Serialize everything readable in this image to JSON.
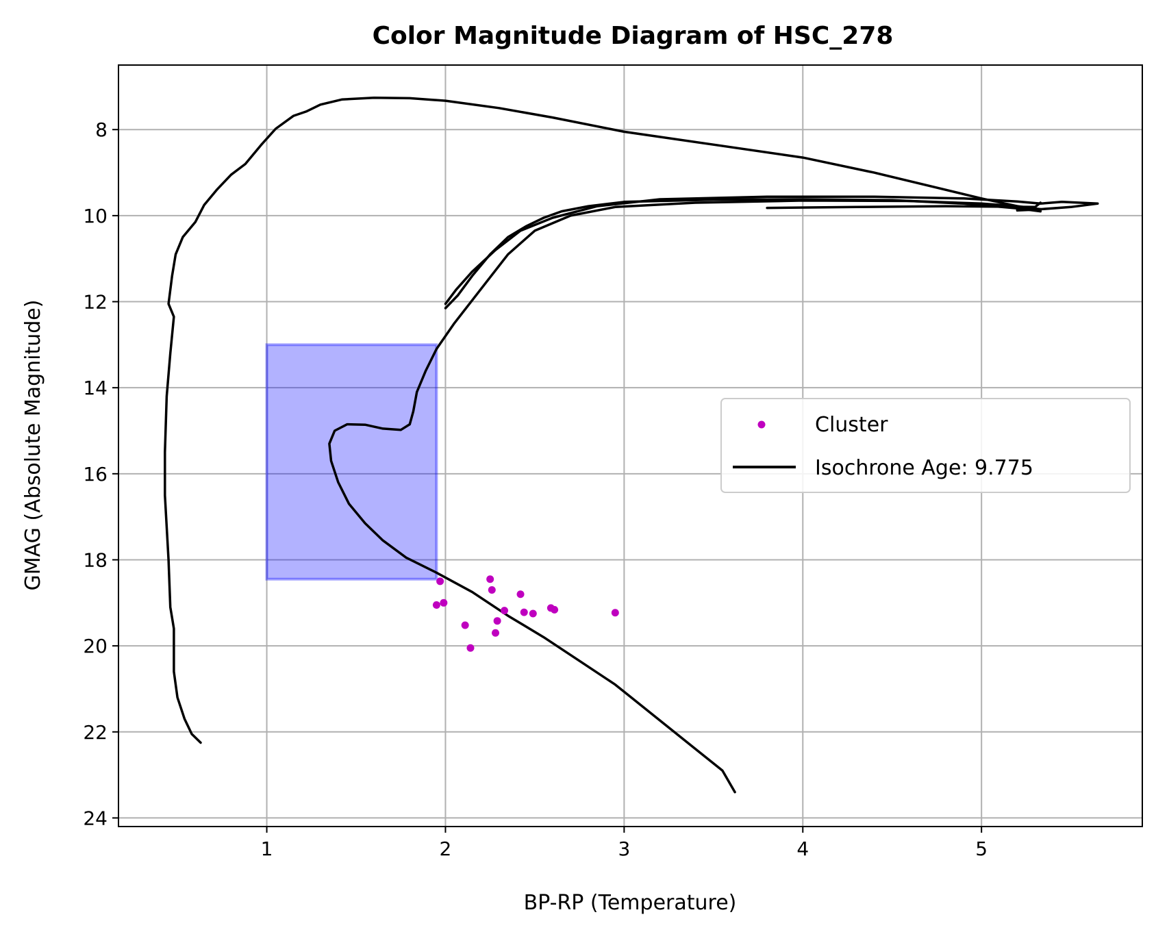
{
  "chart_data": {
    "type": "scatter",
    "title": "Color Magnitude Diagram of HSC_278",
    "xlabel": "BP-RP (Temperature)",
    "ylabel": "GMAG (Absolute Magnitude)",
    "xlim": [
      0.17,
      5.9
    ],
    "ylim": [
      24.2,
      6.5
    ],
    "y_inverted": true,
    "grid": true,
    "legend_position": "center-right",
    "xticks": [
      1,
      2,
      3,
      4,
      5
    ],
    "yticks": [
      8,
      10,
      12,
      14,
      16,
      18,
      20,
      22,
      24
    ],
    "legend": [
      {
        "label": "Cluster",
        "marker": "dot",
        "color": "#bf00bf"
      },
      {
        "label": "Isochrone Age: 9.775",
        "marker": "line",
        "color": "#000000"
      }
    ],
    "region": {
      "x": [
        1.0,
        1.95
      ],
      "y": [
        13.0,
        18.45
      ],
      "color": "#0000ff"
    },
    "cluster": {
      "name": "Cluster",
      "color": "#bf00bf",
      "points": [
        [
          1.97,
          18.5
        ],
        [
          1.95,
          19.05
        ],
        [
          1.99,
          19.0
        ],
        [
          2.11,
          19.52
        ],
        [
          2.14,
          20.05
        ],
        [
          2.25,
          18.45
        ],
        [
          2.26,
          18.7
        ],
        [
          2.28,
          19.7
        ],
        [
          2.29,
          19.42
        ],
        [
          2.33,
          19.18
        ],
        [
          2.42,
          18.8
        ],
        [
          2.44,
          19.22
        ],
        [
          2.49,
          19.25
        ],
        [
          2.59,
          19.12
        ],
        [
          2.61,
          19.16
        ],
        [
          2.95,
          19.23
        ]
      ]
    },
    "isochrone": {
      "name": "Isochrone Age: 9.775",
      "color": "#000000",
      "paths": [
        [
          [
            0.63,
            22.25
          ],
          [
            0.58,
            22.05
          ],
          [
            0.54,
            21.7
          ],
          [
            0.5,
            21.2
          ],
          [
            0.48,
            20.6
          ],
          [
            0.48,
            19.6
          ],
          [
            0.46,
            19.1
          ],
          [
            0.45,
            18.0
          ],
          [
            0.43,
            16.5
          ],
          [
            0.43,
            15.5
          ],
          [
            0.44,
            14.2
          ],
          [
            0.46,
            13.2
          ],
          [
            0.48,
            12.35
          ],
          [
            0.45,
            12.05
          ],
          [
            0.47,
            11.4
          ],
          [
            0.49,
            10.9
          ],
          [
            0.53,
            10.5
          ],
          [
            0.6,
            10.15
          ],
          [
            0.65,
            9.75
          ],
          [
            0.72,
            9.4
          ],
          [
            0.8,
            9.05
          ],
          [
            0.88,
            8.8
          ],
          [
            0.97,
            8.35
          ],
          [
            1.05,
            7.98
          ],
          [
            1.15,
            7.68
          ],
          [
            1.22,
            7.58
          ],
          [
            1.3,
            7.42
          ],
          [
            1.42,
            7.3
          ],
          [
            1.6,
            7.26
          ],
          [
            1.8,
            7.27
          ],
          [
            2.0,
            7.33
          ],
          [
            2.3,
            7.5
          ],
          [
            2.6,
            7.72
          ],
          [
            3.0,
            8.05
          ],
          [
            3.5,
            8.35
          ],
          [
            4.0,
            8.65
          ],
          [
            4.4,
            9.0
          ],
          [
            4.75,
            9.35
          ],
          [
            5.0,
            9.6
          ],
          [
            5.2,
            9.78
          ],
          [
            5.33,
            9.88
          ]
        ],
        [
          [
            5.33,
            9.9
          ],
          [
            5.2,
            9.83
          ],
          [
            4.9,
            9.72
          ],
          [
            4.5,
            9.64
          ],
          [
            4.0,
            9.62
          ],
          [
            3.5,
            9.63
          ],
          [
            3.0,
            9.68
          ],
          [
            2.8,
            9.78
          ],
          [
            2.65,
            9.9
          ],
          [
            2.55,
            10.05
          ],
          [
            2.45,
            10.25
          ],
          [
            2.35,
            10.5
          ],
          [
            2.25,
            10.9
          ],
          [
            2.15,
            11.4
          ],
          [
            2.07,
            11.85
          ],
          [
            2.0,
            12.15
          ]
        ],
        [
          [
            2.0,
            12.05
          ],
          [
            2.06,
            11.72
          ],
          [
            2.15,
            11.3
          ],
          [
            2.28,
            10.8
          ],
          [
            2.42,
            10.35
          ],
          [
            2.6,
            10.05
          ],
          [
            2.85,
            9.78
          ],
          [
            3.2,
            9.62
          ],
          [
            3.8,
            9.56
          ],
          [
            4.4,
            9.56
          ],
          [
            4.9,
            9.6
          ],
          [
            5.2,
            9.67
          ],
          [
            5.33,
            9.72
          ],
          [
            5.45,
            9.68
          ],
          [
            5.65,
            9.72
          ],
          [
            5.5,
            9.8
          ],
          [
            5.3,
            9.86
          ],
          [
            5.2,
            9.88
          ],
          [
            5.2,
            9.82
          ]
        ],
        [
          [
            3.8,
            9.82
          ],
          [
            4.3,
            9.8
          ],
          [
            4.8,
            9.78
          ],
          [
            5.3,
            9.8
          ],
          [
            5.33,
            9.7
          ]
        ],
        [
          [
            5.33,
            9.85
          ],
          [
            5.2,
            9.78
          ],
          [
            5.0,
            9.72
          ],
          [
            4.6,
            9.66
          ],
          [
            4.0,
            9.65
          ],
          [
            3.4,
            9.7
          ],
          [
            2.95,
            9.8
          ],
          [
            2.7,
            10.0
          ],
          [
            2.5,
            10.35
          ],
          [
            2.35,
            10.9
          ],
          [
            2.2,
            11.7
          ],
          [
            2.05,
            12.5
          ],
          [
            1.95,
            13.1
          ],
          [
            1.89,
            13.6
          ],
          [
            1.84,
            14.1
          ],
          [
            1.82,
            14.55
          ],
          [
            1.8,
            14.85
          ],
          [
            1.75,
            14.98
          ],
          [
            1.65,
            14.95
          ],
          [
            1.55,
            14.86
          ],
          [
            1.45,
            14.85
          ],
          [
            1.38,
            15.0
          ],
          [
            1.35,
            15.3
          ],
          [
            1.36,
            15.7
          ],
          [
            1.4,
            16.2
          ],
          [
            1.46,
            16.7
          ],
          [
            1.55,
            17.15
          ],
          [
            1.65,
            17.55
          ],
          [
            1.78,
            17.95
          ],
          [
            1.95,
            18.3
          ],
          [
            2.15,
            18.75
          ],
          [
            2.35,
            19.3
          ],
          [
            2.55,
            19.8
          ],
          [
            2.75,
            20.35
          ],
          [
            2.95,
            20.9
          ],
          [
            3.1,
            21.4
          ],
          [
            3.25,
            21.9
          ],
          [
            3.4,
            22.4
          ],
          [
            3.55,
            22.9
          ],
          [
            3.62,
            23.4
          ]
        ]
      ]
    }
  }
}
